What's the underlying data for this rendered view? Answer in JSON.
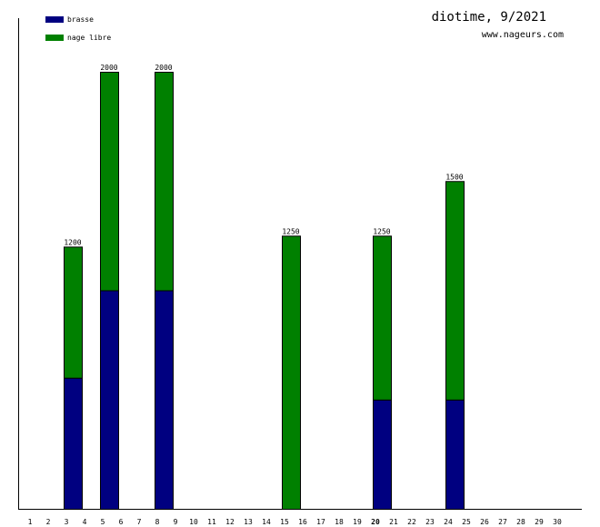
{
  "chart_data": {
    "type": "bar",
    "stacked": true,
    "title": "diotime, 9/2021",
    "subtitle": "www.nageurs.com",
    "xlabel": "",
    "ylabel": "",
    "ylim": [
      0,
      2000
    ],
    "grid": false,
    "legend_position": "top-left",
    "highlighted_day": "20",
    "categories": [
      "1",
      "2",
      "3",
      "4",
      "5",
      "6",
      "7",
      "8",
      "9",
      "10",
      "11",
      "12",
      "13",
      "14",
      "15",
      "16",
      "17",
      "18",
      "19",
      "20",
      "21",
      "22",
      "23",
      "24",
      "25",
      "26",
      "27",
      "28",
      "29",
      "30"
    ],
    "series": [
      {
        "name": "brasse",
        "color": "#000080",
        "values": [
          0,
          0,
          600,
          0,
          1000,
          0,
          0,
          1000,
          0,
          0,
          0,
          0,
          0,
          0,
          0,
          0,
          0,
          0,
          0,
          500,
          0,
          0,
          0,
          500,
          0,
          0,
          0,
          0,
          0,
          0
        ]
      },
      {
        "name": "nage libre",
        "color": "#008000",
        "values": [
          0,
          0,
          600,
          0,
          1000,
          0,
          0,
          1000,
          0,
          0,
          0,
          0,
          0,
          0,
          1250,
          0,
          0,
          0,
          0,
          750,
          0,
          0,
          0,
          1000,
          0,
          0,
          0,
          0,
          0,
          0
        ]
      }
    ],
    "totals": [
      null,
      null,
      "1200",
      null,
      "2000",
      null,
      null,
      "2000",
      null,
      null,
      null,
      null,
      null,
      null,
      "1250",
      null,
      null,
      null,
      null,
      "1250",
      null,
      null,
      null,
      "1500",
      null,
      null,
      null,
      null,
      null,
      null
    ]
  }
}
